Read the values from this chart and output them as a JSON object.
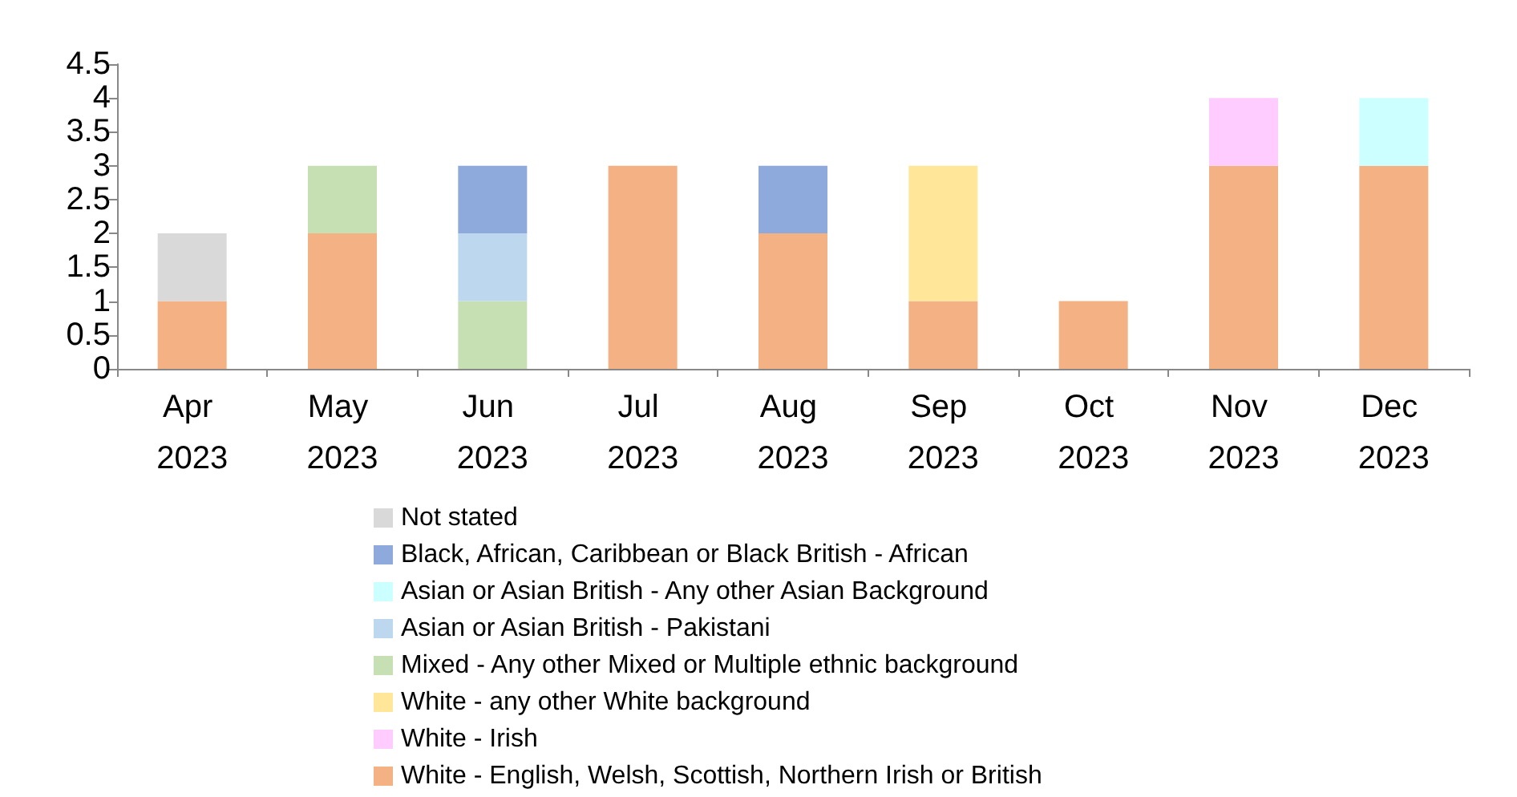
{
  "chart_data": {
    "type": "bar",
    "stacked": true,
    "categories": [
      "Apr 2023",
      "May 2023",
      "Jun 2023",
      "Jul 2023",
      "Aug 2023",
      "Sep 2023",
      "Oct 2023",
      "Nov 2023",
      "Dec 2023"
    ],
    "series": [
      {
        "name": "White - English, Welsh, Scottish, Northern Irish or British",
        "color": "#f4b183",
        "values": [
          1,
          2,
          0,
          3,
          2,
          1,
          1,
          3,
          3
        ]
      },
      {
        "name": "White - Irish",
        "color": "#ffccff",
        "values": [
          0,
          0,
          0,
          0,
          0,
          0,
          0,
          1,
          0
        ]
      },
      {
        "name": "White - any other White background",
        "color": "#ffe699",
        "values": [
          0,
          0,
          0,
          0,
          0,
          2,
          0,
          0,
          0
        ]
      },
      {
        "name": "Mixed - Any other Mixed or Multiple ethnic background",
        "color": "#c6e0b4",
        "values": [
          0,
          1,
          1,
          0,
          0,
          0,
          0,
          0,
          0
        ]
      },
      {
        "name": "Asian or Asian British - Pakistani",
        "color": "#bdd7ee",
        "values": [
          0,
          0,
          1,
          0,
          0,
          0,
          0,
          0,
          0
        ]
      },
      {
        "name": "Asian or Asian British - Any other Asian Background",
        "color": "#ccffff",
        "values": [
          0,
          0,
          0,
          0,
          0,
          0,
          0,
          0,
          1
        ]
      },
      {
        "name": "Black, African, Caribbean or Black British - African",
        "color": "#8ea9db",
        "values": [
          0,
          0,
          1,
          0,
          1,
          0,
          0,
          0,
          0
        ]
      },
      {
        "name": "Not stated",
        "color": "#d9d9d9",
        "values": [
          1,
          0,
          0,
          0,
          0,
          0,
          0,
          0,
          0
        ]
      }
    ],
    "ylim": [
      0,
      4.5
    ],
    "yticks": [
      0,
      0.5,
      1,
      1.5,
      2,
      2.5,
      3,
      3.5,
      4,
      4.5
    ],
    "grid": false,
    "legend": "bottom"
  }
}
